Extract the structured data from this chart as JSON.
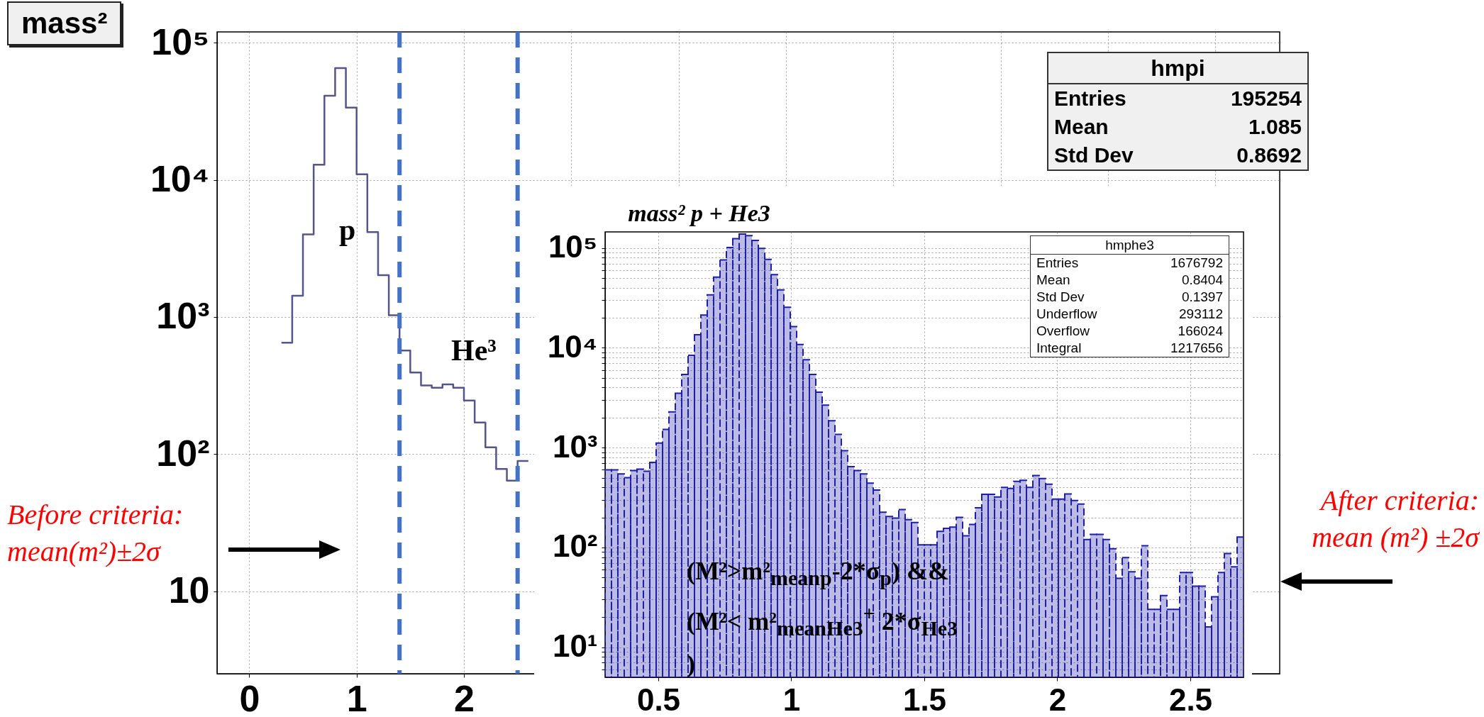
{
  "chart_data": [
    {
      "type": "histogram",
      "title": "mass²",
      "color": "#55558a",
      "line_style": "solid",
      "log": true,
      "grid": true,
      "bins": [
        0.3,
        0.4,
        0.5,
        0.6,
        0.7,
        0.8,
        0.9,
        1.0,
        1.1,
        1.2,
        1.3,
        1.4,
        1.5,
        1.6,
        1.7,
        1.8,
        1.9,
        2.0,
        2.1,
        2.2,
        2.3,
        2.4,
        2.5,
        2.6
      ],
      "values": [
        650,
        1430,
        4000,
        12900,
        41100,
        65300,
        33700,
        11000,
        4160,
        2020,
        1030,
        570,
        393,
        317,
        305,
        322,
        305,
        246,
        170,
        112,
        78,
        64,
        89
      ],
      "xlim": [
        -0.3,
        9.6
      ],
      "xticks": [
        0,
        1,
        2,
        {
          "value": 3,
          "label": null
        },
        {
          "value": 4,
          "label": null
        },
        {
          "value": 5,
          "label": null
        },
        {
          "value": 6,
          "label": null
        },
        {
          "value": 7,
          "label": null
        },
        {
          "value": 8,
          "label": null
        },
        {
          "value": 9,
          "label": null
        }
      ],
      "ylim": [
        2.5,
        120000
      ],
      "yticks": [
        10,
        {
          "value": 100,
          "label": "10²"
        },
        {
          "value": 1000,
          "label": "10³"
        },
        {
          "value": 10000,
          "label": "10⁴"
        },
        {
          "value": 100000,
          "label": "10⁵"
        }
      ],
      "ref_lines": [
        {
          "axis": "x",
          "value": 1.4,
          "color": "#4472c4",
          "line_style": "dashed"
        },
        {
          "axis": "x",
          "value": 2.5,
          "color": "#4472c4",
          "line_style": "dashed"
        }
      ],
      "annotations": [
        "p",
        "He³",
        "Before criteria:\nmean(m²)±2σ",
        "hmpi",
        "Entries 195254",
        "Mean 1.085",
        "Std Dev 0.8692"
      ]
    },
    {
      "type": "histogram",
      "title": "mass² p + He3",
      "color": "#1e1eaa",
      "line_style": "dashed",
      "log": true,
      "grid": true,
      "bins": [
        0.3,
        0.324,
        0.348,
        0.372,
        0.396,
        0.42,
        0.444,
        0.468,
        0.492,
        0.516,
        0.54,
        0.564,
        0.588,
        0.612,
        0.636,
        0.66,
        0.684,
        0.708,
        0.732,
        0.756,
        0.78,
        0.804,
        0.828,
        0.852,
        0.876,
        0.9,
        0.924,
        0.948,
        0.972,
        0.996,
        1.02,
        1.044,
        1.068,
        1.092,
        1.116,
        1.14,
        1.164,
        1.188,
        1.212,
        1.236,
        1.26,
        1.284,
        1.308,
        1.332,
        1.356,
        1.38,
        1.404,
        1.428,
        1.452,
        1.476,
        1.5,
        1.524,
        1.548,
        1.572,
        1.596,
        1.62,
        1.644,
        1.668,
        1.692,
        1.716,
        1.74,
        1.764,
        1.788,
        1.812,
        1.836,
        1.86,
        1.884,
        1.908,
        1.932,
        1.956,
        1.98,
        2.004,
        2.028,
        2.052,
        2.076,
        2.1,
        2.124,
        2.148,
        2.172,
        2.196,
        2.22,
        2.244,
        2.268,
        2.292,
        2.316,
        2.34,
        2.364,
        2.388,
        2.412,
        2.436,
        2.46,
        2.484,
        2.508,
        2.532,
        2.556,
        2.58,
        2.604,
        2.628,
        2.652,
        2.676,
        2.7
      ],
      "values": [
        600,
        600,
        545,
        500,
        590,
        610,
        580,
        710,
        1110,
        1520,
        2280,
        3500,
        5400,
        8400,
        13500,
        21300,
        34000,
        51000,
        76000,
        101000,
        124000,
        138000,
        133000,
        119000,
        99000,
        77000,
        54000,
        38000,
        25500,
        16300,
        10800,
        7600,
        5400,
        3600,
        2670,
        1860,
        1360,
        930,
        645,
        590,
        545,
        440,
        375,
        225,
        204,
        197,
        240,
        190,
        178,
        106,
        106,
        106,
        145,
        155,
        160,
        200,
        131,
        170,
        250,
        340,
        340,
        320,
        400,
        390,
        460,
        470,
        400,
        525,
        490,
        430,
        305,
        305,
        343,
        295,
        272,
        120,
        135,
        135,
        120,
        97,
        49,
        79,
        57,
        49,
        104,
        24,
        24,
        33,
        24,
        24,
        56,
        56,
        41,
        41,
        16,
        32,
        56,
        87,
        64,
        127
      ],
      "xlim": [
        0.3,
        2.7
      ],
      "xticks": [
        0.5,
        1,
        1.5,
        2,
        2.5
      ],
      "ylim": [
        5,
        145000
      ],
      "yticks": [
        {
          "value": 6,
          "label": null
        },
        {
          "value": 7,
          "label": null
        },
        {
          "value": 8,
          "label": null
        },
        {
          "value": 9,
          "label": null
        },
        {
          "value": 10,
          "label": "10¹"
        },
        {
          "value": 20,
          "label": null
        },
        {
          "value": 30,
          "label": null
        },
        {
          "value": 40,
          "label": null
        },
        {
          "value": 50,
          "label": null
        },
        {
          "value": 60,
          "label": null
        },
        {
          "value": 70,
          "label": null
        },
        {
          "value": 80,
          "label": null
        },
        {
          "value": 90,
          "label": null
        },
        {
          "value": 100,
          "label": "10²"
        },
        {
          "value": 200,
          "label": null
        },
        {
          "value": 300,
          "label": null
        },
        {
          "value": 400,
          "label": null
        },
        {
          "value": 500,
          "label": null
        },
        {
          "value": 600,
          "label": null
        },
        {
          "value": 700,
          "label": null
        },
        {
          "value": 800,
          "label": null
        },
        {
          "value": 900,
          "label": null
        },
        {
          "value": 1000,
          "label": "10³"
        },
        {
          "value": 2000,
          "label": null
        },
        {
          "value": 3000,
          "label": null
        },
        {
          "value": 4000,
          "label": null
        },
        {
          "value": 5000,
          "label": null
        },
        {
          "value": 6000,
          "label": null
        },
        {
          "value": 7000,
          "label": null
        },
        {
          "value": 8000,
          "label": null
        },
        {
          "value": 9000,
          "label": null
        },
        {
          "value": 10000,
          "label": "10⁴"
        },
        {
          "value": 20000,
          "label": null
        },
        {
          "value": 30000,
          "label": null
        },
        {
          "value": 40000,
          "label": null
        },
        {
          "value": 50000,
          "label": null
        },
        {
          "value": 60000,
          "label": null
        },
        {
          "value": 70000,
          "label": null
        },
        {
          "value": 80000,
          "label": null
        },
        {
          "value": 90000,
          "label": null
        },
        {
          "value": 100000,
          "label": "10⁵"
        }
      ],
      "annotations": [
        "(M²>m²$_{meanp}$-2*σ$_{p}$) &&\n(M²< m²$_{meanHe3}$$^{+}$ 2*σ$_{He3}$\n)",
        "After criteria:\nmean (m²) ±2σ",
        "hmphe3",
        "Entries 1676792",
        "Mean 0.8404",
        "Std Dev 0.1397",
        "Underflow 293112",
        "Overflow 166024",
        "Integral 1217656"
      ]
    }
  ]
}
